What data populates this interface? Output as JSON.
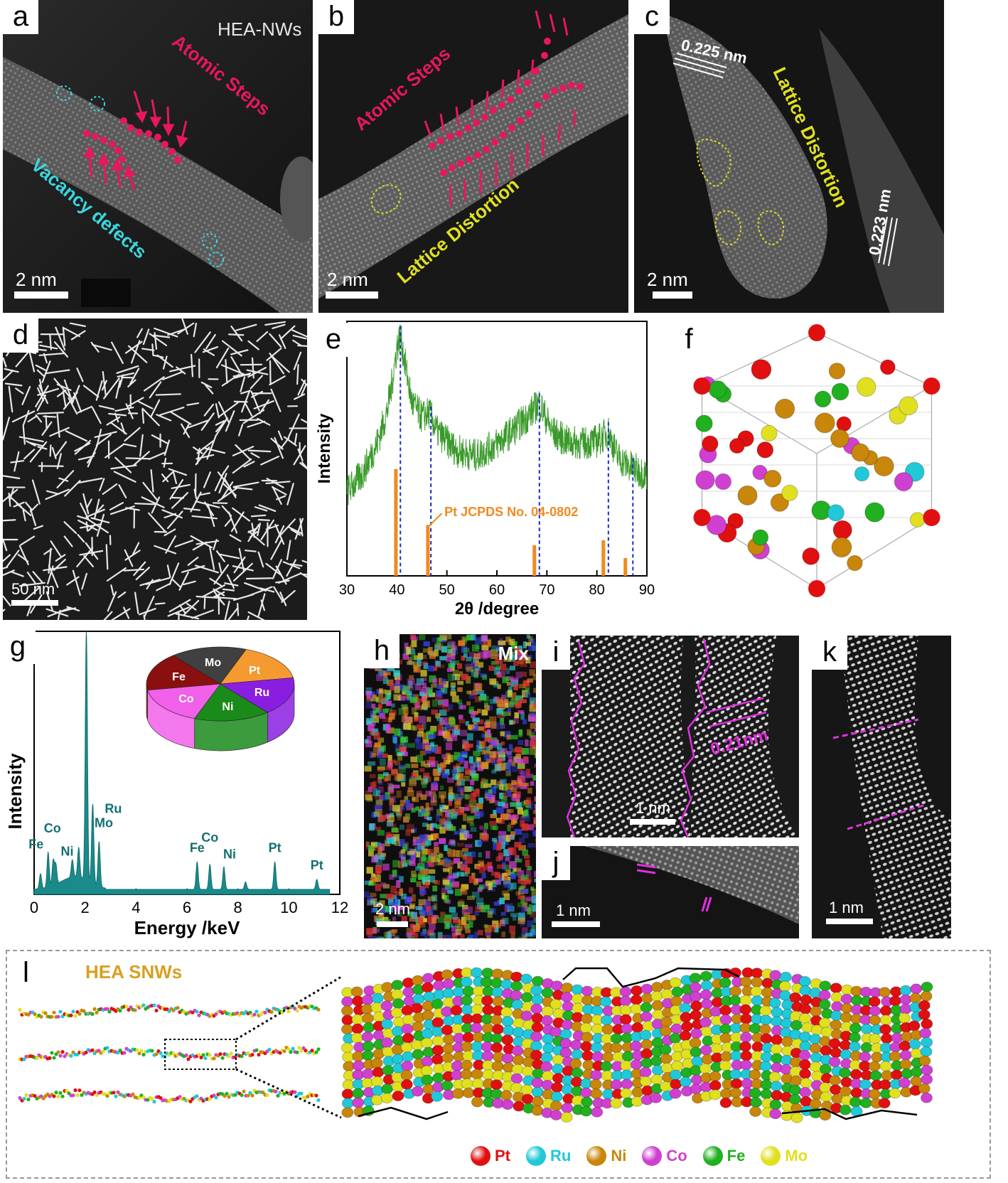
{
  "panels": {
    "a": {
      "label": "a",
      "title": "HEA-NWs",
      "steps": "Atomic Steps",
      "vacancy": "Vacancy defects",
      "scale": "2 nm"
    },
    "b": {
      "label": "b",
      "steps": "Atomic Steps",
      "distortion": "Lattice Distortion",
      "scale": "2 nm"
    },
    "c": {
      "label": "c",
      "d1": "0.225 nm",
      "d2": "0.223 nm",
      "distortion": "Lattice Distortion",
      "scale": "2 nm"
    },
    "d": {
      "label": "d",
      "scale": "50 nm"
    },
    "e": {
      "label": "e"
    },
    "f": {
      "label": "f"
    },
    "g": {
      "label": "g"
    },
    "h": {
      "label": "h",
      "mix": "Mix",
      "scale": "2 nm"
    },
    "i": {
      "label": "i",
      "spacing": "0.21nm",
      "scale": "1 nm"
    },
    "j": {
      "label": "j",
      "scale": "1 nm"
    },
    "k": {
      "label": "k",
      "scale": "1 nm"
    },
    "l": {
      "label": "l",
      "title": "HEA SNWs"
    }
  },
  "legend_l": [
    {
      "name": "Pt",
      "color": "#e01010"
    },
    {
      "name": "Ru",
      "color": "#20c8d8"
    },
    {
      "name": "Ni",
      "color": "#c8860a"
    },
    {
      "name": "Co",
      "color": "#d040d0"
    },
    {
      "name": "Fe",
      "color": "#20b020"
    },
    {
      "name": "Mo",
      "color": "#e0e020"
    }
  ],
  "chart_data": [
    {
      "type": "line",
      "panel": "e",
      "xlabel": "2θ /degree",
      "ylabel": "Intensity",
      "xlim": [
        30,
        90
      ],
      "xticks": [
        30,
        40,
        50,
        60,
        70,
        80,
        90
      ],
      "series": [
        {
          "x": [
            30,
            33,
            36,
            38,
            39,
            40,
            40.7,
            41.5,
            43,
            45,
            46.5,
            48,
            52,
            56,
            60,
            63,
            66,
            68.5,
            71,
            74,
            77,
            80,
            82.3,
            84,
            86,
            87.2,
            88,
            90
          ],
          "y": [
            0.35,
            0.42,
            0.55,
            0.68,
            0.8,
            0.95,
            1.0,
            0.9,
            0.72,
            0.66,
            0.68,
            0.6,
            0.52,
            0.5,
            0.55,
            0.6,
            0.66,
            0.72,
            0.6,
            0.56,
            0.55,
            0.56,
            0.6,
            0.5,
            0.46,
            0.45,
            0.44,
            0.42
          ]
        }
      ],
      "reference": {
        "name": "Pt JCPDS No. 04-0802",
        "x": [
          39.8,
          46.2,
          67.5,
          81.3,
          85.7
        ],
        "h": [
          0.42,
          0.2,
          0.12,
          0.14,
          0.07
        ]
      },
      "peak_lines": [
        40.7,
        46.8,
        68.5,
        82.3,
        87.2
      ]
    },
    {
      "type": "line",
      "panel": "g",
      "xlabel": "Energy /keV",
      "ylabel": "Intensity",
      "xlim": [
        0,
        12
      ],
      "xticks": [
        0,
        2,
        4,
        6,
        8,
        10,
        12
      ],
      "peaks": [
        {
          "x": 0.25,
          "h": 0.06
        },
        {
          "x": 0.55,
          "h": 0.14
        },
        {
          "x": 0.75,
          "h": 0.1
        },
        {
          "x": 0.85,
          "h": 0.08
        },
        {
          "x": 1.5,
          "h": 0.07
        },
        {
          "x": 1.75,
          "h": 0.12
        },
        {
          "x": 2.05,
          "h": 1.0
        },
        {
          "x": 2.3,
          "h": 0.32
        },
        {
          "x": 2.55,
          "h": 0.18
        },
        {
          "x": 6.4,
          "h": 0.11
        },
        {
          "x": 6.9,
          "h": 0.1
        },
        {
          "x": 7.45,
          "h": 0.09
        },
        {
          "x": 8.3,
          "h": 0.03
        },
        {
          "x": 9.45,
          "h": 0.11
        },
        {
          "x": 11.1,
          "h": 0.04
        }
      ],
      "peak_labels": [
        {
          "text": "Pt",
          "x": 2.05
        },
        {
          "text": "Fe",
          "x": 0.3
        },
        {
          "text": "Co",
          "x": 0.55
        },
        {
          "text": "Ni",
          "x": 0.85
        },
        {
          "text": "Mo",
          "x": 2.4
        },
        {
          "text": "Ru",
          "x": 2.55
        },
        {
          "text": "Fe",
          "x": 6.4
        },
        {
          "text": "Co",
          "x": 6.9
        },
        {
          "text": "Ni",
          "x": 7.45
        },
        {
          "text": "Pt",
          "x": 9.45
        },
        {
          "text": "Pt",
          "x": 11.1
        }
      ]
    },
    {
      "type": "pie",
      "panel": "g-inset",
      "slices": [
        {
          "name": "Mo",
          "value": 1,
          "color": "#404040"
        },
        {
          "name": "Pt",
          "value": 1,
          "color": "#f59a30"
        },
        {
          "name": "Ru",
          "value": 1,
          "color": "#8a1ee0"
        },
        {
          "name": "Ni",
          "value": 1,
          "color": "#1a8a1a"
        },
        {
          "name": "Co",
          "value": 1,
          "color": "#f060e8"
        },
        {
          "name": "Fe",
          "value": 1,
          "color": "#8a1010"
        }
      ]
    }
  ]
}
